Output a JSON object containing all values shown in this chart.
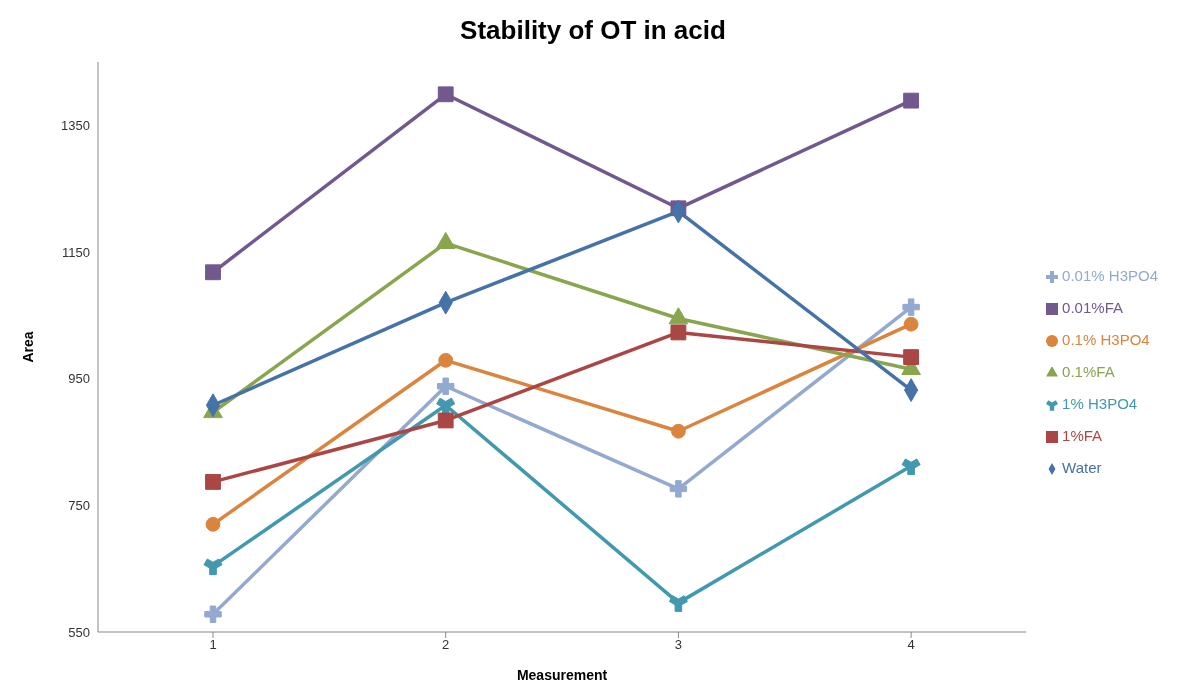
{
  "chart_data": {
    "type": "line",
    "title": "Stability of OT in acid",
    "xlabel": "Measurement",
    "ylabel": "Area",
    "categories": [
      "1",
      "2",
      "3",
      "4"
    ],
    "series": [
      {
        "name": "Water",
        "color": "#4572a7",
        "marker": "diamond",
        "values": [
          908,
          1070,
          1214,
          932
        ]
      },
      {
        "name": "1%FA",
        "color": "#aa4643",
        "marker": "square",
        "values": [
          787,
          884,
          1023,
          984
        ]
      },
      {
        "name": "0.1%FA",
        "color": "#89a54e",
        "marker": "triangle",
        "values": [
          897,
          1164,
          1045,
          965
        ]
      },
      {
        "name": "0.01%FA",
        "color": "#71588f",
        "marker": "square",
        "values": [
          1118,
          1399,
          1219,
          1389
        ]
      },
      {
        "name": "1% H3PO4",
        "color": "#4198af",
        "marker": "star",
        "values": [
          654,
          908,
          596,
          812
        ]
      },
      {
        "name": "0.1% H3PO4",
        "color": "#db843d",
        "marker": "circle",
        "values": [
          720,
          979,
          867,
          1036
        ]
      },
      {
        "name": "0.01% H3PO4",
        "color": "#93a9cf",
        "marker": "cross",
        "values": [
          578,
          938,
          776,
          1063
        ]
      }
    ],
    "ylim": [
      550,
      1450
    ],
    "yticks": [
      550,
      750,
      950,
      1150,
      1350
    ],
    "grid": false,
    "legend": "right"
  }
}
